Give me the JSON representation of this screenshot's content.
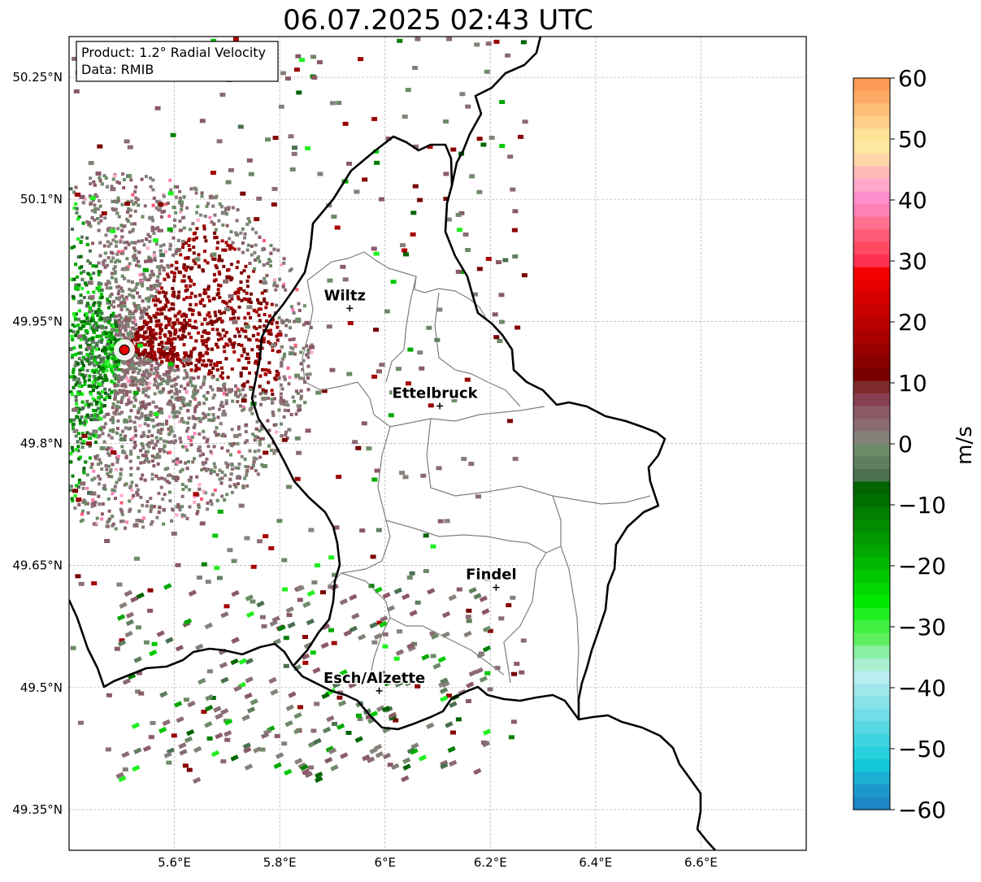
{
  "title": "06.07.2025 02:43 UTC",
  "info_box": {
    "product_line": "Product: 1.2° Radial Velocity",
    "data_line": "Data: RMIB"
  },
  "map": {
    "lon_range": [
      5.4,
      6.8
    ],
    "lat_range": [
      49.3,
      50.3
    ],
    "lat_ticks": [
      {
        "value": 50.25,
        "label": "50.25°N"
      },
      {
        "value": 50.1,
        "label": "50.1°N"
      },
      {
        "value": 49.95,
        "label": "49.95°N"
      },
      {
        "value": 49.8,
        "label": "49.8°N"
      },
      {
        "value": 49.65,
        "label": "49.65°N"
      },
      {
        "value": 49.5,
        "label": "49.5°N"
      },
      {
        "value": 49.35,
        "label": "49.35°N"
      }
    ],
    "lon_ticks": [
      {
        "value": 5.6,
        "label": "5.6°E"
      },
      {
        "value": 5.8,
        "label": "5.8°E"
      },
      {
        "value": 6.0,
        "label": "6°E"
      },
      {
        "value": 6.2,
        "label": "6.2°E"
      },
      {
        "value": 6.4,
        "label": "6.4°E"
      },
      {
        "value": 6.6,
        "label": "6.6°E"
      }
    ],
    "grid": true,
    "radar_site": {
      "lon": 5.505,
      "lat": 49.915,
      "color": "#e60000"
    },
    "cities": [
      {
        "name": "Wiltz",
        "lon": 5.933,
        "lat": 49.966
      },
      {
        "name": "Ettelbruck",
        "lon": 6.104,
        "lat": 49.846
      },
      {
        "name": "Findel",
        "lon": 6.211,
        "lat": 49.623
      },
      {
        "name": "Esch/Alzette",
        "lon": 5.989,
        "lat": 49.496
      }
    ]
  },
  "colorbar": {
    "label": "m/s",
    "ticks": [
      "60",
      "50",
      "40",
      "30",
      "20",
      "10",
      "0",
      "−10",
      "−20",
      "−30",
      "−40",
      "−50",
      "−60"
    ],
    "range": [
      -60,
      60
    ],
    "colors_top_to_bottom": [
      "#fd9a55",
      "#fdab66",
      "#fdbf78",
      "#fecd88",
      "#fee295",
      "#fee7a0",
      "#ffd6a8",
      "#ffb8b8",
      "#ffa8cc",
      "#ff8ecc",
      "#ff80b7",
      "#ff7090",
      "#ff5a78",
      "#ff4a62",
      "#ff3050",
      "#f50000",
      "#e60000",
      "#d60000",
      "#c80000",
      "#b80000",
      "#a80000",
      "#980000",
      "#880000",
      "#780000",
      "#7e2a2a",
      "#884050",
      "#8b5a66",
      "#8b6c74",
      "#86807a",
      "#6d8a68",
      "#5e7e5e",
      "#4a7050",
      "#006400",
      "#007000",
      "#007e00",
      "#008c00",
      "#009a00",
      "#00a800",
      "#00b800",
      "#00c800",
      "#00d800",
      "#00e800",
      "#20f020",
      "#40f040",
      "#60f060",
      "#88f0a0",
      "#a8f0d0",
      "#b8eef0",
      "#a0e8ec",
      "#86e2e8",
      "#70dee6",
      "#58d8e2",
      "#40d4e0",
      "#28d0de",
      "#10c8d8",
      "#1cb0d4",
      "#1e98cc",
      "#1e86c4"
    ]
  }
}
